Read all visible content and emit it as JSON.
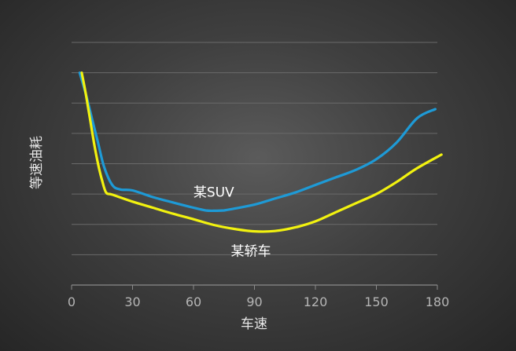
{
  "chart_data": {
    "type": "line",
    "title": "",
    "xlabel": "车速",
    "ylabel": "等速油耗",
    "xlim": [
      0,
      180
    ],
    "ylim": [
      0,
      8
    ],
    "grid": true,
    "show_y_ticks": false,
    "x_ticks": [
      0,
      30,
      60,
      90,
      120,
      150,
      180
    ],
    "colors": {
      "suv": "#1e9ad6",
      "sedan": "#f2f20f",
      "grid": "#6a6a6a",
      "axis": "#8a8a8a"
    },
    "series": [
      {
        "name": "某SUV",
        "color": "#1e9ad6",
        "points": [
          [
            4,
            7.0
          ],
          [
            7,
            6.3
          ],
          [
            10,
            5.5
          ],
          [
            13,
            4.7
          ],
          [
            16,
            3.9
          ],
          [
            20,
            3.3
          ],
          [
            24,
            3.15
          ],
          [
            30,
            3.12
          ],
          [
            40,
            2.9
          ],
          [
            50,
            2.72
          ],
          [
            60,
            2.55
          ],
          [
            66,
            2.46
          ],
          [
            70,
            2.45
          ],
          [
            75,
            2.46
          ],
          [
            80,
            2.52
          ],
          [
            90,
            2.65
          ],
          [
            100,
            2.85
          ],
          [
            110,
            3.05
          ],
          [
            120,
            3.3
          ],
          [
            130,
            3.55
          ],
          [
            140,
            3.8
          ],
          [
            150,
            4.15
          ],
          [
            160,
            4.7
          ],
          [
            170,
            5.5
          ],
          [
            179,
            5.8
          ]
        ]
      },
      {
        "name": "某轿车",
        "color": "#f2f20f",
        "points": [
          [
            5,
            7.0
          ],
          [
            7,
            6.3
          ],
          [
            9,
            5.5
          ],
          [
            11,
            4.7
          ],
          [
            13,
            4.0
          ],
          [
            15,
            3.45
          ],
          [
            17,
            3.05
          ],
          [
            20,
            2.98
          ],
          [
            30,
            2.75
          ],
          [
            40,
            2.55
          ],
          [
            50,
            2.35
          ],
          [
            60,
            2.17
          ],
          [
            70,
            1.98
          ],
          [
            80,
            1.85
          ],
          [
            90,
            1.77
          ],
          [
            100,
            1.78
          ],
          [
            110,
            1.9
          ],
          [
            120,
            2.1
          ],
          [
            130,
            2.4
          ],
          [
            140,
            2.7
          ],
          [
            150,
            3.0
          ],
          [
            160,
            3.4
          ],
          [
            170,
            3.85
          ],
          [
            182,
            4.3
          ]
        ]
      }
    ],
    "annotations": [
      {
        "text": "某SUV",
        "series": 0,
        "x": 70,
        "y": 2.45
      },
      {
        "text": "某轿车",
        "series": 1,
        "x": 90,
        "y": 1.77
      }
    ]
  }
}
